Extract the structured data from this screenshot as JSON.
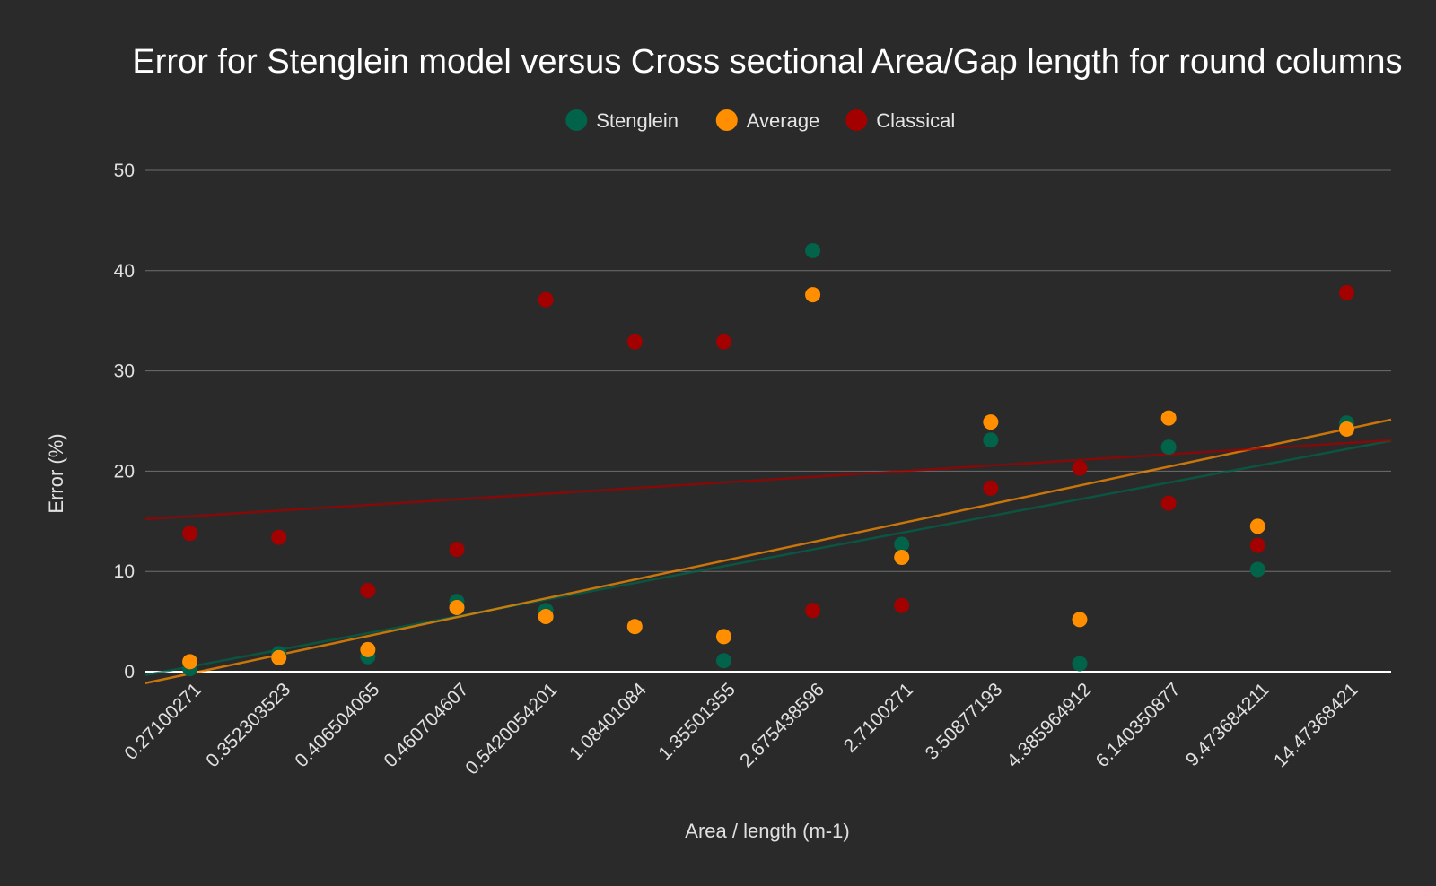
{
  "chart_data": {
    "type": "scatter",
    "title": "Error for Stenglein model versus Cross sectional Area/Gap length for round columns",
    "xlabel": "Area / length (m-1)",
    "ylabel": "Error (%)",
    "ylim": [
      0,
      50
    ],
    "yticks": [
      "0",
      "10",
      "20",
      "30",
      "40",
      "50"
    ],
    "grid": true,
    "legend_position": "top",
    "categories": [
      "0.27100271",
      "0.352303523",
      "0.406504065",
      "0.460704607",
      "0.5420054201",
      "1.08401084",
      "1.35501355",
      "2.675438596",
      "2.7100271",
      "3.50877193",
      "4.385964912",
      "6.140350877",
      "9.473684211",
      "14.47368421"
    ],
    "series": [
      {
        "name": "Stenglein",
        "color": "#00634a",
        "values": [
          0.3,
          1.8,
          1.5,
          7.0,
          6.1,
          null,
          1.1,
          42.0,
          12.7,
          23.1,
          0.8,
          22.4,
          10.2,
          24.8
        ],
        "trendline": [
          0.5,
          22.2
        ]
      },
      {
        "name": "Average",
        "color": "#ff8f00",
        "values": [
          1.0,
          1.4,
          2.2,
          6.4,
          5.5,
          4.5,
          3.5,
          37.6,
          11.4,
          24.9,
          5.2,
          25.3,
          14.5,
          24.2
        ],
        "trendline": [
          -0.2,
          24.2
        ]
      },
      {
        "name": "Classical",
        "color": "#a30000",
        "values": [
          13.8,
          13.4,
          8.1,
          12.2,
          37.1,
          32.9,
          32.9,
          6.1,
          6.6,
          18.3,
          20.3,
          16.8,
          12.6,
          37.8
        ],
        "trendline": [
          15.5,
          22.8
        ]
      }
    ]
  }
}
